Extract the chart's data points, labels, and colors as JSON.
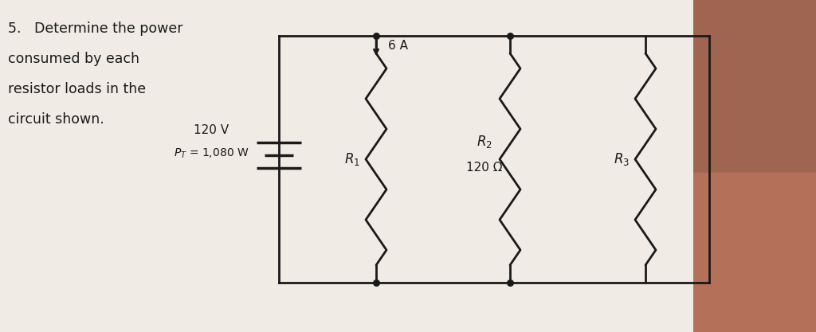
{
  "bg_color_left": "#e8e3da",
  "bg_color_right": "#c0a898",
  "paper_color": "#f0ece5",
  "text_color": "#1a1a1a",
  "problem_text_lines": [
    "5.   Determine the power",
    "consumed by each",
    "resistor loads in the",
    "circuit shown."
  ],
  "source_label_line1": "120 V",
  "source_label_line2": "$P_T$ = 1,080 W",
  "current_label": "6 A",
  "r1_label": "$R_1$",
  "r2_label": "$R_2$",
  "r2_value": "120 Ω",
  "r3_label": "$R_3$",
  "wire_color": "#1a1a1a",
  "resistor_color": "#1a1a1a",
  "photo_color1": "#b5705a",
  "photo_color2": "#8b5c4a",
  "photo_color3": "#d4a090"
}
